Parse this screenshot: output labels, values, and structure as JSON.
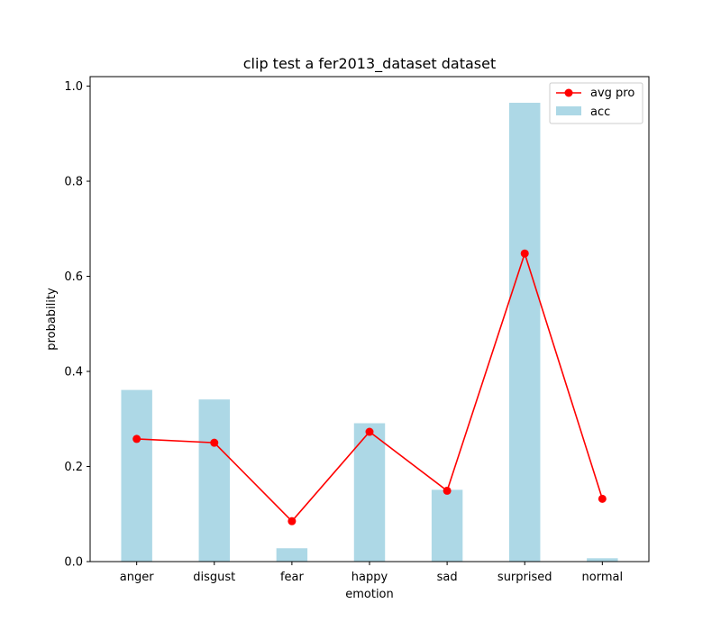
{
  "chart_data": {
    "type": "bar",
    "title": "clip test a fer2013_dataset dataset",
    "xlabel": "emotion",
    "ylabel": "probability",
    "categories": [
      "anger",
      "disgust",
      "fear",
      "happy",
      "sad",
      "surprised",
      "normal"
    ],
    "ylim": [
      0,
      1.02
    ],
    "yticks": [
      0.0,
      0.2,
      0.4,
      0.6,
      0.8,
      1.0
    ],
    "ytick_labels": [
      "0.0",
      "0.2",
      "0.4",
      "0.6",
      "0.8",
      "1.0"
    ],
    "grid": false,
    "legend_position": "top-right",
    "series": [
      {
        "name": "acc",
        "kind": "bar",
        "color": "#add8e6",
        "values": [
          0.361,
          0.341,
          0.028,
          0.291,
          0.151,
          0.965,
          0.007
        ]
      },
      {
        "name": "avg pro",
        "kind": "line",
        "marker": "circle",
        "color": "#ff0000",
        "values": [
          0.258,
          0.25,
          0.085,
          0.273,
          0.149,
          0.648,
          0.132
        ]
      }
    ]
  }
}
